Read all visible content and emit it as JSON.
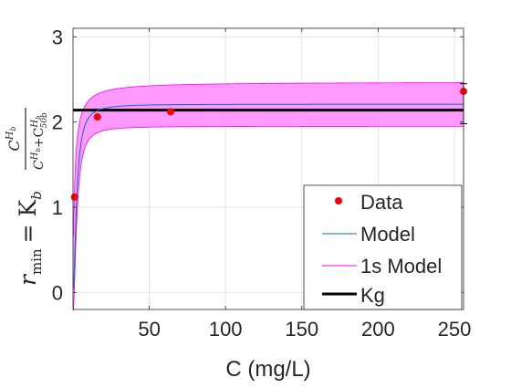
{
  "chart_data": {
    "type": "line",
    "title": "",
    "xlabel": "C (mg/L)",
    "ylabel_main": "r",
    "ylabel_sub": "min",
    "ylabel_eq": "= K",
    "ylabel_eq_sub": "b",
    "ylabel_frac_num": "C",
    "ylabel_frac_num_sup": "H",
    "ylabel_frac_num_sup_sub": "b",
    "ylabel_frac_den": "C",
    "ylabel_frac_den_sup": "H",
    "ylabel_frac_den_sup_sub": "b",
    "ylabel_frac_den_plus": "+C",
    "ylabel_frac_den_plus_sup": "H",
    "ylabel_frac_den_plus_sup_sub": "b",
    "ylabel_frac_den_plus_sub": "50b",
    "xlim": [
      0,
      256
    ],
    "ylim": [
      -0.2,
      3.1
    ],
    "xticks": [
      50,
      100,
      150,
      200,
      250
    ],
    "yticks": [
      0,
      1,
      2,
      3
    ],
    "grid": true,
    "legend_position": "bottom-right",
    "series": [
      {
        "name": "Data",
        "kind": "points",
        "color": "#ff0000",
        "x": [
          1,
          16,
          64,
          256
        ],
        "y": [
          1.12,
          2.06,
          2.12,
          2.36
        ]
      },
      {
        "name": "Model",
        "kind": "line",
        "color": "#0072bd",
        "Kb": 2.21,
        "Hb": 1.8,
        "C50b": 2.5
      },
      {
        "name": "1s Model",
        "kind": "band",
        "color": "#ff00ff",
        "fill": "#ff99ff",
        "lower_offset": 0.26,
        "upper_offset": 0.26
      },
      {
        "name": "Kg",
        "kind": "hline",
        "color": "#000000",
        "y": 2.14
      }
    ],
    "errorbar": {
      "x": 256,
      "y_low": 1.98,
      "y_high": 2.45
    }
  }
}
